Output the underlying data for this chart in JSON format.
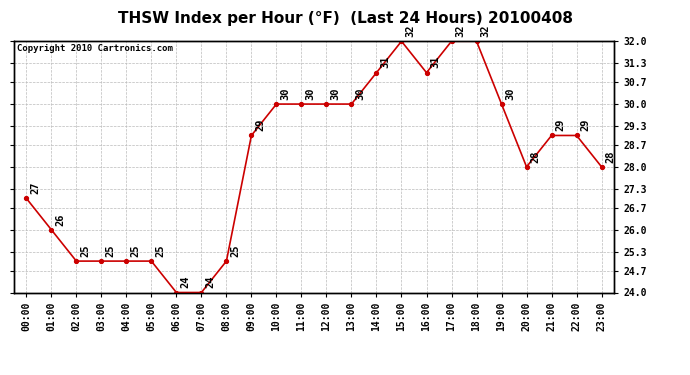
{
  "title": "THSW Index per Hour (°F)  (Last 24 Hours) 20100408",
  "copyright": "Copyright 2010 Cartronics.com",
  "hours": [
    "00:00",
    "01:00",
    "02:00",
    "03:00",
    "04:00",
    "05:00",
    "06:00",
    "07:00",
    "08:00",
    "09:00",
    "10:00",
    "11:00",
    "12:00",
    "13:00",
    "14:00",
    "15:00",
    "16:00",
    "17:00",
    "18:00",
    "19:00",
    "20:00",
    "21:00",
    "22:00",
    "23:00"
  ],
  "values": [
    27,
    26,
    25,
    25,
    25,
    25,
    24,
    24,
    25,
    29,
    30,
    30,
    30,
    30,
    31,
    32,
    31,
    32,
    32,
    30,
    28,
    29,
    29,
    28
  ],
  "ylim_min": 24.0,
  "ylim_max": 32.0,
  "yticks": [
    24.0,
    24.7,
    25.3,
    26.0,
    26.7,
    27.3,
    28.0,
    28.7,
    29.3,
    30.0,
    30.7,
    31.3,
    32.0
  ],
  "line_color": "#cc0000",
  "marker_color": "#cc0000",
  "background_color": "#ffffff",
  "grid_color": "#bbbbbb",
  "title_fontsize": 11,
  "copyright_fontsize": 6.5,
  "tick_fontsize": 7,
  "label_fontsize": 7.5
}
